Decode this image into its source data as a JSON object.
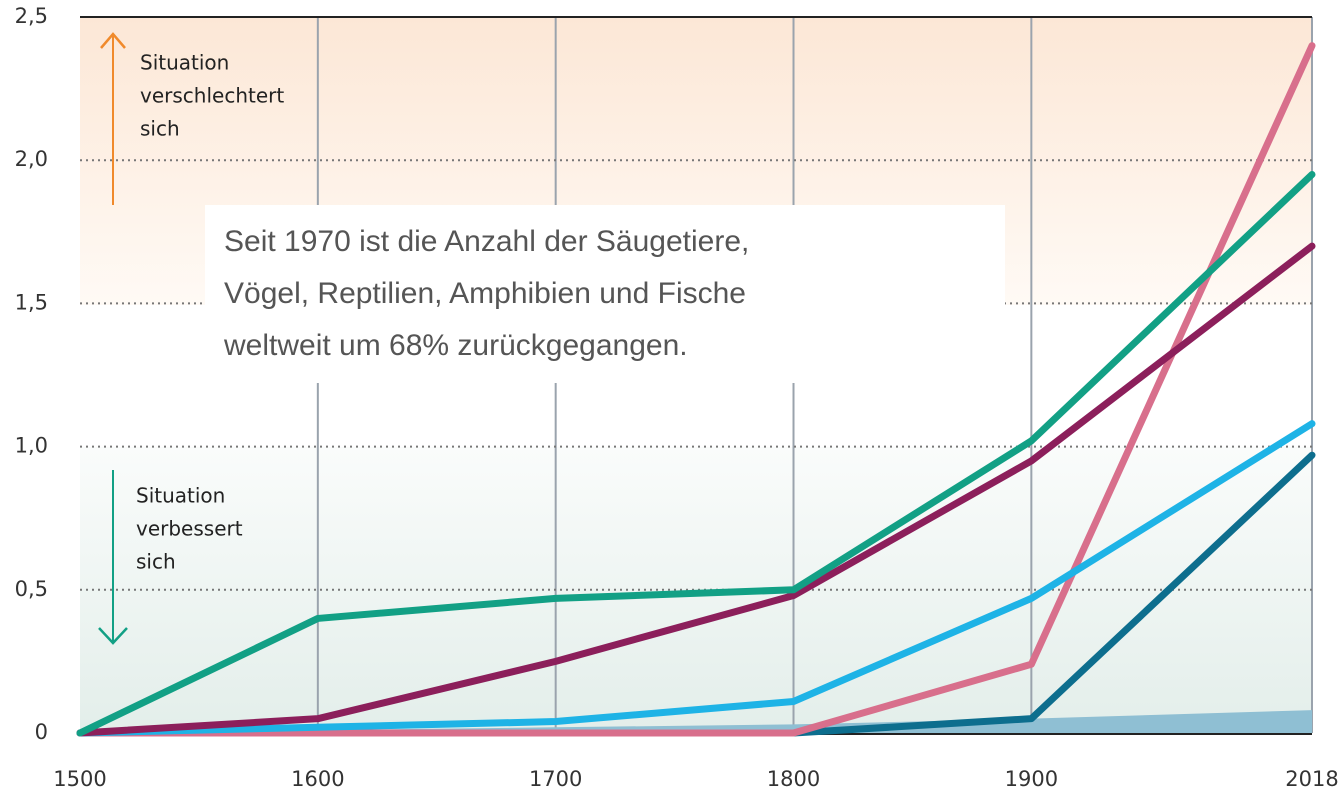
{
  "chart_data": {
    "type": "line",
    "xlim": [
      1500,
      2018
    ],
    "xticks": [
      1500,
      1600,
      1700,
      1800,
      1900,
      2018
    ],
    "ylim": [
      0,
      2.5
    ],
    "yticks": [
      0,
      {
        "value": 0.5,
        "label": "0,5"
      },
      {
        "value": 1.0,
        "label": "1,0"
      },
      {
        "value": 1.5,
        "label": "1,5"
      },
      {
        "value": 2.0,
        "label": "2,0"
      },
      {
        "value": 2.5,
        "label": "2,5"
      }
    ],
    "grid": true,
    "x": [
      1500,
      1600,
      1700,
      1800,
      1900,
      2018
    ],
    "series": [
      {
        "type": "area",
        "color": "#8fbfd3",
        "values": [
          0,
          0.01,
          0.02,
          0.03,
          0.05,
          0.08
        ]
      },
      {
        "color": "#0d6e8e",
        "values": [
          0,
          0,
          0,
          0,
          0.05,
          0.97
        ]
      },
      {
        "color": "#d86f8c",
        "values": [
          0,
          0,
          0,
          0,
          0.24,
          2.4
        ]
      },
      {
        "color": "#1eb3e6",
        "values": [
          0,
          0.02,
          0.04,
          0.11,
          0.47,
          1.08
        ]
      },
      {
        "color": "#8c1f5b",
        "values": [
          0,
          0.05,
          0.25,
          0.48,
          0.95,
          1.7
        ]
      },
      {
        "color": "#12a085",
        "values": [
          0,
          0.4,
          0.47,
          0.5,
          1.02,
          1.95
        ]
      }
    ],
    "annotations": [
      {
        "lines": [
          "Situation",
          "verschlechtert",
          "sich"
        ]
      },
      {
        "lines": [
          "Situation",
          "verbessert",
          "sich"
        ]
      },
      {
        "lines": [
          "Seit 1970 ist die Anzahl der Säugetiere,",
          "Vögel, Reptilien, Amphibien und Fische",
          "weltweit um 68% zurückgegangen."
        ]
      }
    ]
  }
}
